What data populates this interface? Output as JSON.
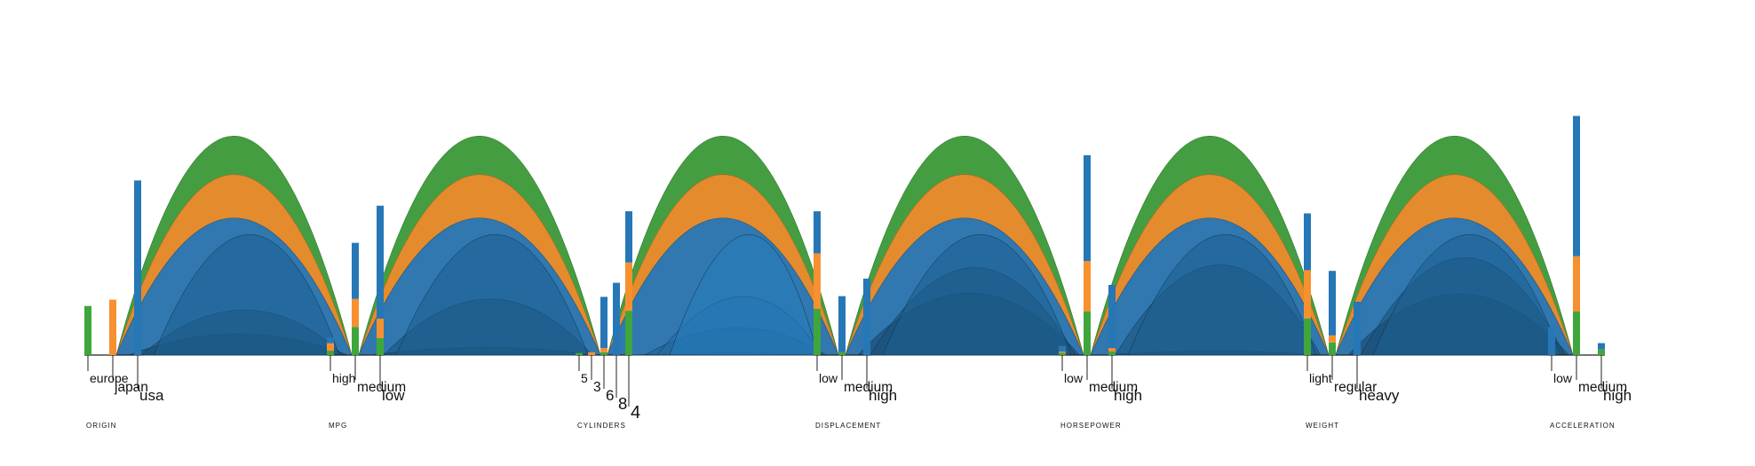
{
  "colors": {
    "usa": "#2677b6",
    "japan": "#f7902f",
    "europe": "#3fa63c",
    "axis": "#222222"
  },
  "chart_data": {
    "type": "parallel-sets",
    "legend_order": [
      "usa",
      "japan",
      "europe"
    ],
    "dimensions": [
      {
        "name": "origin",
        "title": "ORIGIN",
        "categories": [
          {
            "label": "europe",
            "usa": 0,
            "japan": 0,
            "europe": 70
          },
          {
            "label": "japan",
            "usa": 0,
            "japan": 79,
            "europe": 0
          },
          {
            "label": "usa",
            "usa": 249,
            "japan": 0,
            "europe": 0
          }
        ]
      },
      {
        "name": "mpg",
        "title": "MPG",
        "categories": [
          {
            "label": "high",
            "usa": 8,
            "japan": 11,
            "europe": 6
          },
          {
            "label": "medium",
            "usa": 80,
            "japan": 40,
            "europe": 40
          },
          {
            "label": "low",
            "usa": 161,
            "japan": 28,
            "europe": 24
          }
        ]
      },
      {
        "name": "cylinders",
        "title": "CYLINDERS",
        "categories": [
          {
            "label": "5",
            "usa": 0,
            "japan": 0,
            "europe": 3
          },
          {
            "label": "3",
            "usa": 0,
            "japan": 4,
            "europe": 0
          },
          {
            "label": "6",
            "usa": 73,
            "japan": 6,
            "europe": 4
          },
          {
            "label": "8",
            "usa": 103,
            "japan": 0,
            "europe": 0
          },
          {
            "label": "4",
            "usa": 73,
            "japan": 69,
            "europe": 63
          }
        ]
      },
      {
        "name": "displacement",
        "title": "DISPLACEMENT",
        "categories": [
          {
            "label": "low",
            "usa": 60,
            "japan": 79,
            "europe": 66
          },
          {
            "label": "medium",
            "usa": 80,
            "japan": 0,
            "europe": 4
          },
          {
            "label": "high",
            "usa": 109,
            "japan": 0,
            "europe": 0
          }
        ]
      },
      {
        "name": "horsepower",
        "title": "HORSEPOWER",
        "categories": [
          {
            "label": "low",
            "usa": 8,
            "japan": 2,
            "europe": 3
          },
          {
            "label": "medium",
            "usa": 151,
            "japan": 72,
            "europe": 62
          },
          {
            "label": "high",
            "usa": 90,
            "japan": 5,
            "europe": 5
          }
        ]
      },
      {
        "name": "weight",
        "title": "WEIGHT",
        "categories": [
          {
            "label": "light",
            "usa": 81,
            "japan": 69,
            "europe": 52
          },
          {
            "label": "regular",
            "usa": 92,
            "japan": 10,
            "europe": 18
          },
          {
            "label": "heavy",
            "usa": 76,
            "japan": 0,
            "europe": 0
          }
        ]
      },
      {
        "name": "acceleration",
        "title": "ACCELERATION",
        "categories": [
          {
            "label": "low",
            "usa": 40,
            "japan": 0,
            "europe": 0
          },
          {
            "label": "medium",
            "usa": 200,
            "japan": 79,
            "europe": 62
          },
          {
            "label": "high",
            "usa": 9,
            "japan": 0,
            "europe": 8
          }
        ]
      }
    ]
  }
}
